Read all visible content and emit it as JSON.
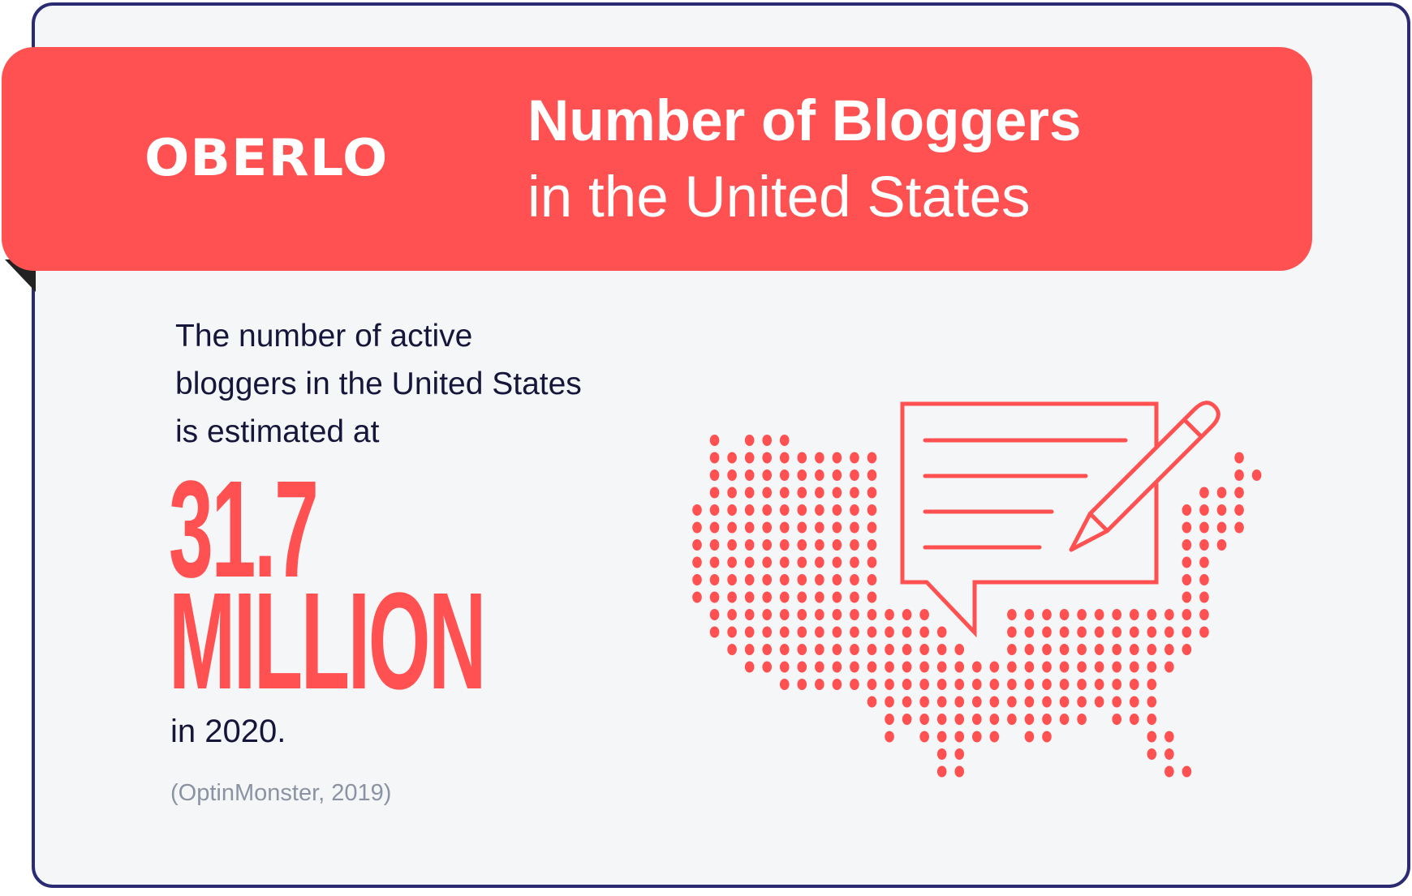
{
  "brand": {
    "logo_text": "OBERLO",
    "accent_color": "#ff5151",
    "border_color": "#2b2b73"
  },
  "header": {
    "title_line1": "Number of Bloggers",
    "title_line2": "in the United States"
  },
  "body": {
    "intro": "The number of active bloggers in the United States is estimated at",
    "figure_number": "31.7",
    "figure_unit": "MILLION",
    "year_text": "in 2020.",
    "source": "(OptinMonster, 2019)"
  },
  "illustration": {
    "icons": [
      "us-dot-map",
      "speech-bubble-icon",
      "pencil-icon"
    ]
  }
}
